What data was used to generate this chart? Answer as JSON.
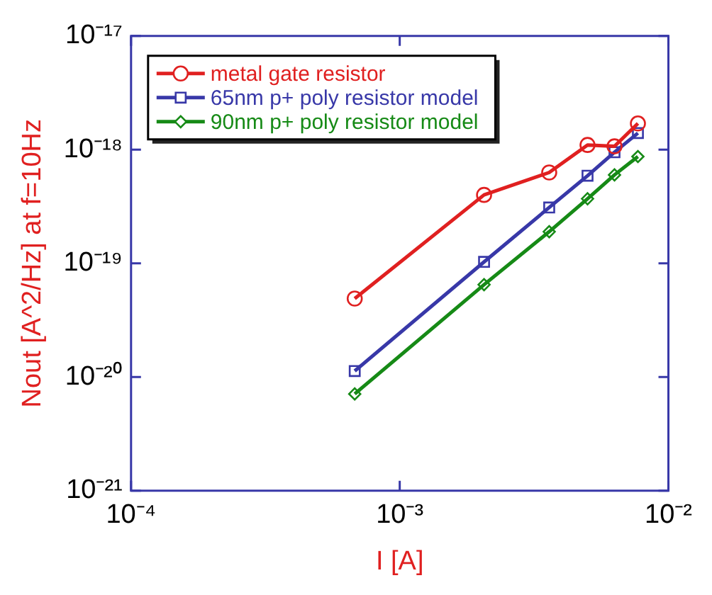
{
  "chart_data": {
    "type": "line",
    "xlabel": "I [A]",
    "ylabel": "Nout [A^2/Hz] at f=10Hz",
    "log": "xy",
    "grid": false,
    "legend": "top left",
    "line_style": "solid",
    "x": [
      0.00068,
      0.00206,
      0.0036,
      0.005,
      0.0063,
      0.0077
    ],
    "xlim": [
      0.0001,
      0.01
    ],
    "xticks": [
      {
        "value": 0.0001,
        "label": "10⁻⁴"
      },
      {
        "value": 0.001,
        "label": "10⁻³"
      },
      {
        "value": 0.01,
        "label": "10⁻²"
      }
    ],
    "ylim": [
      1e-21,
      1e-17
    ],
    "yticks": [
      {
        "value": 1e-21,
        "label": "10⁻²¹"
      },
      {
        "value": 1e-20,
        "label": "10⁻²⁰"
      },
      {
        "value": 1e-19,
        "label": "10⁻¹⁹"
      },
      {
        "value": 1e-18,
        "label": "10⁻¹⁸"
      },
      {
        "value": 1e-17,
        "label": "10⁻¹⁷"
      }
    ],
    "series": [
      {
        "name": "metal gate resistor",
        "color": "#e02020",
        "marker": "circle",
        "values": [
          4.9e-20,
          4e-19,
          6.3e-19,
          1.1e-18,
          1.07e-18,
          1.7e-18
        ]
      },
      {
        "name": "65nm p+ poly resistor model",
        "color": "#3838a8",
        "marker": "square",
        "values": [
          1.13e-20,
          1.03e-19,
          3.1e-19,
          5.9e-19,
          9.5e-19,
          1.4e-18
        ]
      },
      {
        "name": "90nm p+ poly resistor model",
        "color": "#168a16",
        "marker": "diamond",
        "values": [
          7.1e-21,
          6.5e-20,
          1.9e-19,
          3.7e-19,
          6e-19,
          8.7e-19
        ]
      }
    ]
  }
}
